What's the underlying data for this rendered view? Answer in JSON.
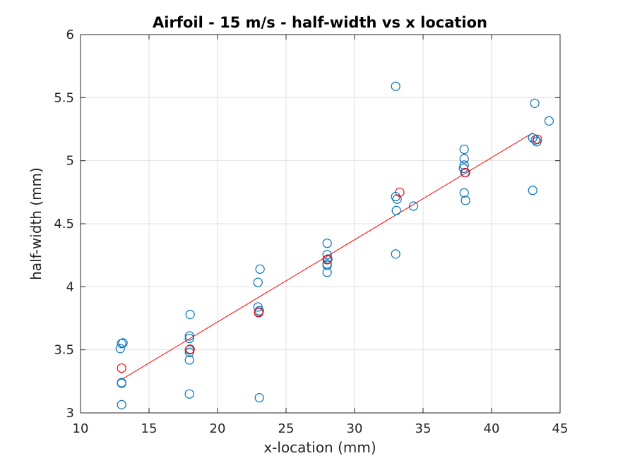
{
  "chart_data": {
    "type": "scatter",
    "title": "Airfoil - 15 m/s - half-width vs x location",
    "xlabel": "x-location (mm)",
    "ylabel": "half-width (mm)",
    "xlim": [
      10,
      45
    ],
    "ylim": [
      3,
      6
    ],
    "xticks": [
      "10",
      "15",
      "20",
      "25",
      "30",
      "35",
      "40",
      "45"
    ],
    "yticks": [
      "3",
      "3.5",
      "4",
      "4.5",
      "5",
      "5.5",
      "6"
    ],
    "grid": true,
    "legend": "none",
    "colors": {
      "measured": "#0072BD",
      "mean": "#FF0000",
      "fit": "#FF0000"
    },
    "series": [
      {
        "kind": "measured-points",
        "points": [
          [
            12.9,
            3.51
          ],
          [
            13.0,
            3.55
          ],
          [
            13.1,
            3.555
          ],
          [
            13.0,
            3.24
          ],
          [
            13.0,
            3.235
          ],
          [
            13.0,
            3.065
          ],
          [
            18.0,
            3.78
          ],
          [
            17.95,
            3.61
          ],
          [
            17.95,
            3.59
          ],
          [
            17.95,
            3.5
          ],
          [
            17.95,
            3.48
          ],
          [
            17.95,
            3.42
          ],
          [
            17.95,
            3.15
          ],
          [
            23.1,
            4.14
          ],
          [
            22.95,
            4.035
          ],
          [
            22.95,
            3.84
          ],
          [
            23.05,
            3.81
          ],
          [
            23.0,
            3.8
          ],
          [
            23.05,
            3.12
          ],
          [
            28.0,
            4.345
          ],
          [
            28.0,
            4.255
          ],
          [
            28.05,
            4.22
          ],
          [
            28.0,
            4.18
          ],
          [
            28.0,
            4.17
          ],
          [
            28.0,
            4.115
          ],
          [
            33.0,
            5.59
          ],
          [
            33.0,
            4.715
          ],
          [
            33.1,
            4.695
          ],
          [
            33.05,
            4.605
          ],
          [
            34.3,
            4.64
          ],
          [
            33.0,
            4.26
          ],
          [
            38.0,
            5.09
          ],
          [
            38.0,
            5.015
          ],
          [
            38.0,
            4.965
          ],
          [
            37.95,
            4.94
          ],
          [
            38.05,
            4.905
          ],
          [
            38.0,
            4.745
          ],
          [
            38.1,
            4.685
          ],
          [
            43.15,
            5.455
          ],
          [
            44.2,
            5.315
          ],
          [
            43.0,
            5.18
          ],
          [
            43.2,
            5.165
          ],
          [
            43.3,
            5.15
          ],
          [
            43.0,
            4.765
          ]
        ]
      },
      {
        "kind": "mean-points",
        "points": [
          [
            13.0,
            3.355
          ],
          [
            18.0,
            3.505
          ],
          [
            23.0,
            3.795
          ],
          [
            28.0,
            4.215
          ],
          [
            33.3,
            4.75
          ],
          [
            38.1,
            4.905
          ],
          [
            43.35,
            5.17
          ]
        ]
      },
      {
        "kind": "linear-fit",
        "points": [
          [
            13.0,
            3.265
          ],
          [
            43.0,
            5.22
          ]
        ]
      }
    ]
  }
}
